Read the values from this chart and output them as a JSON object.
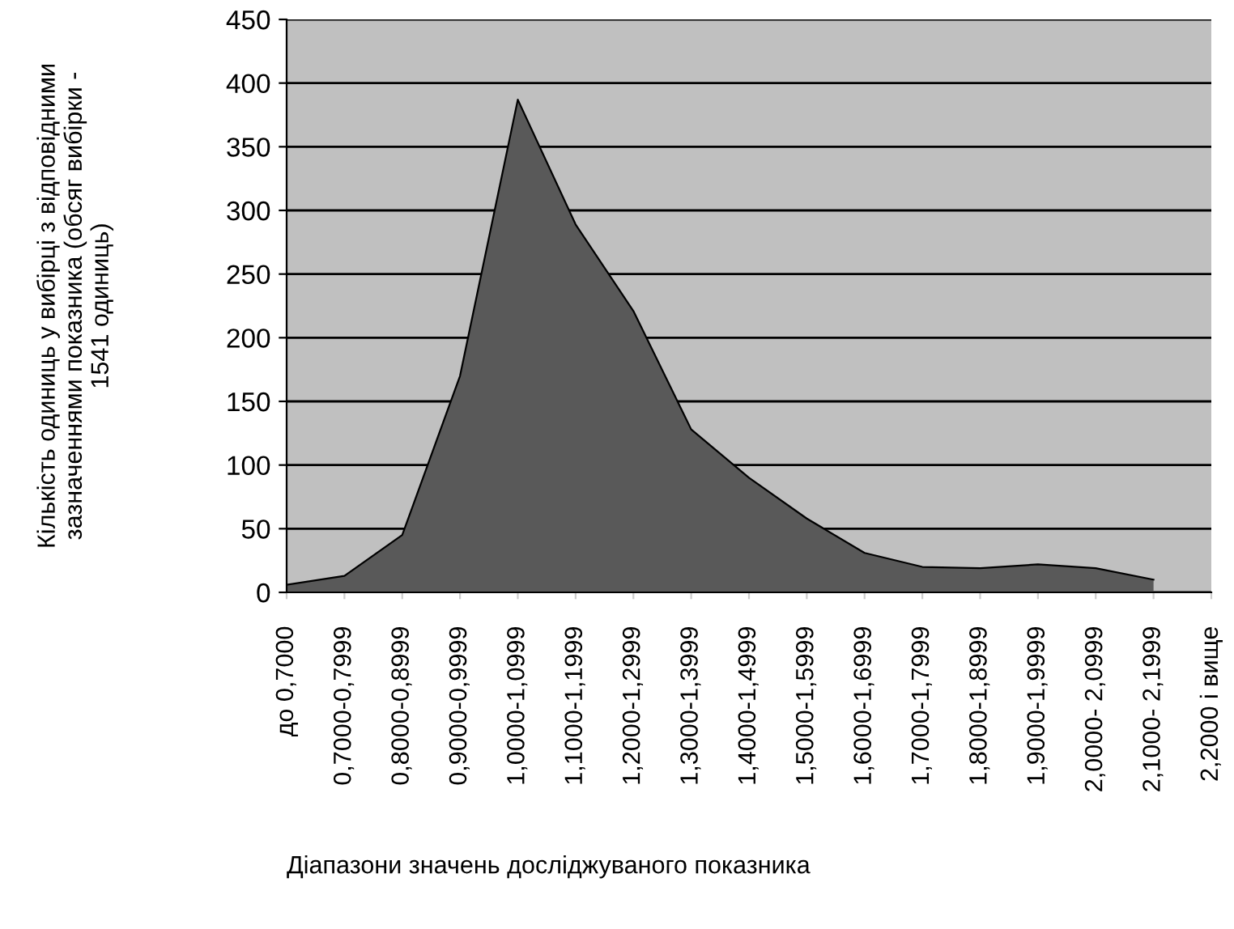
{
  "chart_data": {
    "type": "area",
    "xlabel": "Діапазони значень досліджуваного показника",
    "ylabel": "Кількість одиниць у вибірці з відповідними\nзазначеннями показника (обсяг вибірки -\n1541 одиниць)",
    "categories": [
      "до 0,7000",
      "0,7000-0,7999",
      "0,8000-0,8999",
      "0,9000-0,9999",
      "1,0000-1,0999",
      "1,1000-1,1999",
      "1,2000-1,2999",
      "1,3000-1,3999",
      "1,4000-1,4999",
      "1,5000-1,5999",
      "1,6000-1,6999",
      "1,7000-1,7999",
      "1,8000-1,8999",
      "1,9000-1,9999",
      "2,0000- 2,0999",
      "2,1000- 2,1999",
      "2,2000 і вище"
    ],
    "series": [
      {
        "color": "#595959",
        "values": [
          6,
          13,
          45,
          170,
          387,
          289,
          221,
          128,
          90,
          58,
          31,
          20,
          19,
          22,
          19,
          10,
          null
        ]
      }
    ],
    "ylim": [
      0,
      450
    ],
    "yticks": [
      0,
      50,
      100,
      150,
      200,
      250,
      300,
      350,
      400,
      450
    ],
    "grid": "y"
  }
}
